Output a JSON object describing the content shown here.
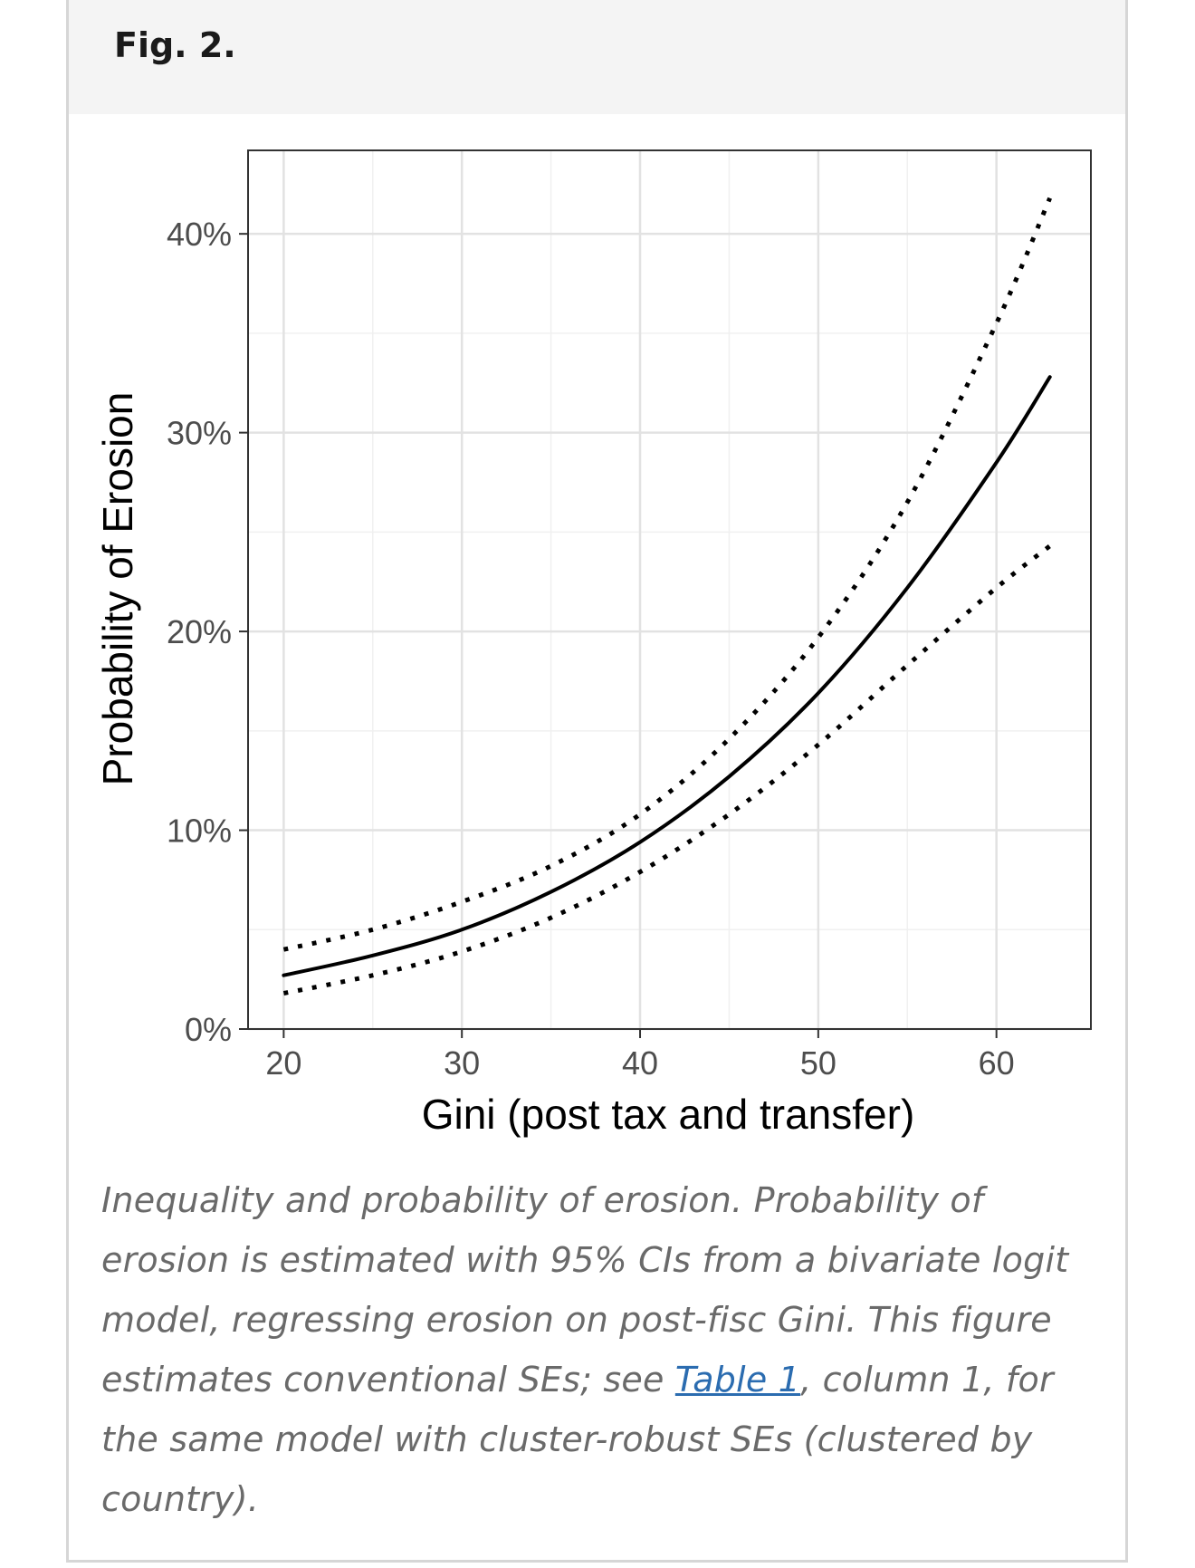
{
  "figure": {
    "label": "Fig. 2."
  },
  "caption": {
    "part1": "Inequality and probability of erosion. Probability of erosion is estimated with 95% CIs from a bivariate logit model, regressing erosion on post-fisc Gini. This figure estimates conventional SEs; see ",
    "link_text": "Table 1",
    "part2": ", column 1, for the same model with cluster-robust SEs (clustered by country)."
  },
  "chart_data": {
    "type": "line",
    "xlabel": "Gini (post tax and transfer)",
    "ylabel": "Probability of Erosion",
    "xlim": [
      18,
      65.3
    ],
    "ylim": [
      0,
      44.2
    ],
    "x_ticks": [
      20,
      30,
      40,
      50,
      60
    ],
    "x_tick_labels": [
      "20",
      "30",
      "40",
      "50",
      "60"
    ],
    "y_ticks": [
      0,
      10,
      20,
      30,
      40
    ],
    "y_tick_labels": [
      "0%",
      "10%",
      "20%",
      "30%",
      "40%"
    ],
    "grid": true,
    "series": [
      {
        "role": "estimate",
        "line_style": "solid",
        "x": [
          20,
          25,
          30,
          35,
          40,
          45,
          50,
          55,
          60,
          63
        ],
        "y": [
          2.7,
          3.7,
          5.0,
          6.9,
          9.4,
          12.7,
          16.9,
          22.2,
          28.5,
          32.8
        ]
      },
      {
        "role": "upper-95-ci",
        "line_style": "dotted",
        "x": [
          20,
          25,
          30,
          35,
          40,
          45,
          50,
          55,
          60,
          63
        ],
        "y": [
          4.0,
          5.0,
          6.4,
          8.2,
          10.8,
          14.6,
          19.7,
          26.5,
          35.5,
          41.8
        ]
      },
      {
        "role": "lower-95-ci",
        "line_style": "dotted",
        "x": [
          20,
          25,
          30,
          35,
          40,
          45,
          50,
          55,
          60,
          63
        ],
        "y": [
          1.8,
          2.7,
          3.9,
          5.6,
          7.9,
          10.8,
          14.3,
          18.3,
          22.2,
          24.3
        ]
      }
    ]
  }
}
